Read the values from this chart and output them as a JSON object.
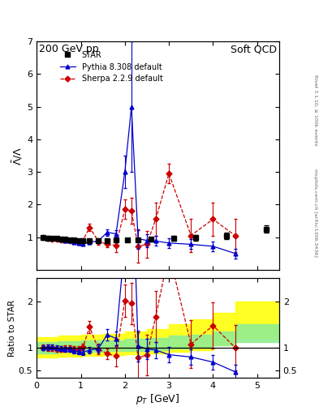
{
  "title_left": "200 GeV pp",
  "title_right": "Soft QCD",
  "ylabel_upper": "$\\bar{\\Lambda}/\\Lambda$",
  "ylabel_lower": "Ratio to STAR",
  "xlabel": "$p_{T}$ [GeV]",
  "right_label_top": "Rivet 3.1.10, ≥ 100k events",
  "right_label_bottom": "mcplots.cern.ch [arXiv:1306.3436]",
  "star_x": [
    0.15,
    0.25,
    0.35,
    0.45,
    0.55,
    0.65,
    0.75,
    0.85,
    0.95,
    1.05,
    1.2,
    1.4,
    1.6,
    1.8,
    2.05,
    2.3,
    2.6,
    3.1,
    3.6,
    4.3,
    5.2
  ],
  "star_y": [
    1.0,
    0.97,
    0.96,
    0.96,
    0.95,
    0.93,
    0.92,
    0.91,
    0.9,
    0.89,
    0.9,
    0.9,
    0.9,
    0.92,
    0.92,
    0.92,
    0.93,
    0.97,
    0.98,
    1.05,
    1.25
  ],
  "star_yerr": [
    0.04,
    0.04,
    0.03,
    0.03,
    0.03,
    0.03,
    0.03,
    0.03,
    0.03,
    0.03,
    0.04,
    0.04,
    0.04,
    0.05,
    0.05,
    0.05,
    0.06,
    0.07,
    0.08,
    0.1,
    0.12
  ],
  "pythia_x": [
    0.15,
    0.25,
    0.35,
    0.45,
    0.55,
    0.65,
    0.75,
    0.85,
    0.95,
    1.05,
    1.2,
    1.4,
    1.6,
    1.8,
    2.0,
    2.15,
    2.3,
    2.5,
    2.7,
    3.0,
    3.5,
    4.0,
    4.5
  ],
  "pythia_y": [
    1.0,
    0.98,
    0.97,
    0.96,
    0.93,
    0.9,
    0.88,
    0.85,
    0.82,
    0.8,
    0.85,
    0.88,
    1.15,
    1.1,
    3.0,
    5.0,
    0.95,
    0.9,
    0.88,
    0.82,
    0.78,
    0.72,
    0.5
  ],
  "pythia_yerr": [
    0.04,
    0.04,
    0.04,
    0.04,
    0.04,
    0.04,
    0.04,
    0.04,
    0.04,
    0.04,
    0.05,
    0.06,
    0.1,
    0.12,
    0.5,
    2.0,
    0.3,
    0.2,
    0.15,
    0.15,
    0.15,
    0.15,
    0.15
  ],
  "sherpa_x": [
    0.15,
    0.25,
    0.35,
    0.45,
    0.55,
    0.65,
    0.75,
    0.85,
    0.95,
    1.05,
    1.2,
    1.4,
    1.6,
    1.8,
    2.0,
    2.15,
    2.3,
    2.5,
    2.7,
    3.0,
    3.5,
    4.0,
    4.5
  ],
  "sherpa_y": [
    1.0,
    0.97,
    0.95,
    0.93,
    0.92,
    0.91,
    0.9,
    0.88,
    0.87,
    0.9,
    1.3,
    0.87,
    0.78,
    0.75,
    1.85,
    1.8,
    0.72,
    0.78,
    1.55,
    2.95,
    1.05,
    1.55,
    1.05
  ],
  "sherpa_yerr": [
    0.05,
    0.05,
    0.05,
    0.05,
    0.05,
    0.05,
    0.05,
    0.05,
    0.05,
    0.05,
    0.1,
    0.1,
    0.1,
    0.2,
    0.3,
    0.4,
    0.5,
    0.4,
    0.5,
    0.3,
    0.5,
    0.5,
    0.5
  ],
  "ylim_upper": [
    0.0,
    7.0
  ],
  "ylim_lower": [
    0.35,
    2.5
  ],
  "xlim": [
    0.0,
    5.5
  ],
  "band_edges": [
    0.0,
    0.5,
    1.0,
    1.5,
    2.0,
    2.5,
    3.0,
    3.5,
    4.0,
    4.5,
    5.5
  ],
  "band_yellow_low": [
    0.78,
    0.8,
    0.82,
    0.83,
    0.85,
    0.87,
    0.9,
    0.95,
    1.05,
    1.2
  ],
  "band_yellow_high": [
    1.22,
    1.25,
    1.28,
    1.3,
    1.35,
    1.4,
    1.5,
    1.6,
    1.75,
    2.0
  ],
  "band_green_low": [
    0.88,
    0.9,
    0.91,
    0.92,
    0.93,
    0.95,
    0.97,
    1.0,
    1.05,
    1.12
  ],
  "band_green_high": [
    1.12,
    1.14,
    1.15,
    1.16,
    1.18,
    1.2,
    1.25,
    1.28,
    1.35,
    1.5
  ],
  "star_color": "#000000",
  "pythia_color": "#0000CC",
  "sherpa_color": "#CC0000",
  "legend_labels": [
    "STAR",
    "Pythia 8.308 default",
    "Sherpa 2.2.9 default"
  ],
  "upper_yticks": [
    1,
    2,
    3,
    4,
    5,
    6,
    7
  ],
  "lower_yticks": [
    0.5,
    1.0,
    2.0
  ],
  "xticks": [
    0,
    1,
    2,
    3,
    4,
    5
  ]
}
